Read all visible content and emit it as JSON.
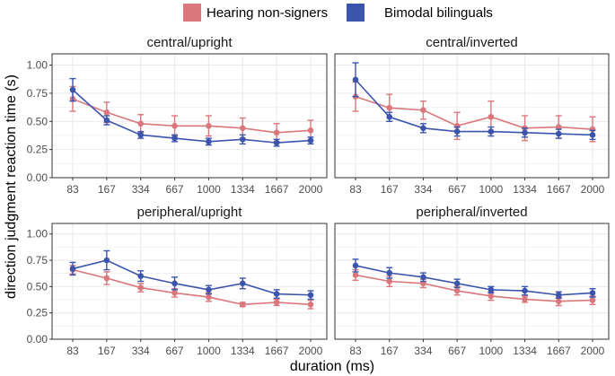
{
  "colors": {
    "hearing": "#d9777d",
    "bimodal": "#3b55ad",
    "grid": "#ebebeb",
    "frame": "#333333"
  },
  "chart_data": {
    "type": "line",
    "xlabel": "duration (ms)",
    "ylabel": "direction judgment reaction time (s)",
    "categories": [
      "83",
      "167",
      "334",
      "667",
      "1000",
      "1334",
      "1667",
      "2000"
    ],
    "ylim": [
      0,
      1.1
    ],
    "yticks": [
      "0.00",
      "0.25",
      "0.50",
      "0.75",
      "1.00"
    ],
    "legend": [
      "Hearing non-signers",
      "Bimodal bilinguals"
    ],
    "legend_position": "top",
    "panels": [
      {
        "title": "central/upright",
        "series": [
          {
            "name": "Hearing non-signers",
            "values": [
              0.7,
              0.58,
              0.48,
              0.46,
              0.46,
              0.44,
              0.4,
              0.42
            ],
            "err": [
              0.11,
              0.09,
              0.08,
              0.09,
              0.09,
              0.09,
              0.08,
              0.09
            ]
          },
          {
            "name": "Bimodal bilinguals",
            "values": [
              0.78,
              0.51,
              0.38,
              0.35,
              0.32,
              0.34,
              0.31,
              0.33
            ],
            "err": [
              0.1,
              0.04,
              0.03,
              0.03,
              0.03,
              0.04,
              0.03,
              0.03
            ]
          }
        ]
      },
      {
        "title": "central/inverted",
        "series": [
          {
            "name": "Hearing non-signers",
            "values": [
              0.72,
              0.62,
              0.6,
              0.46,
              0.54,
              0.44,
              0.45,
              0.43
            ],
            "err": [
              0.13,
              0.12,
              0.08,
              0.12,
              0.14,
              0.11,
              0.1,
              0.11
            ]
          },
          {
            "name": "Bimodal bilinguals",
            "values": [
              0.87,
              0.54,
              0.44,
              0.41,
              0.41,
              0.4,
              0.39,
              0.38
            ],
            "err": [
              0.15,
              0.04,
              0.04,
              0.04,
              0.04,
              0.04,
              0.04,
              0.04
            ]
          }
        ]
      },
      {
        "title": "peripheral/upright",
        "series": [
          {
            "name": "Hearing non-signers",
            "values": [
              0.66,
              0.58,
              0.49,
              0.44,
              0.4,
              0.33,
              0.35,
              0.33
            ],
            "err": [
              0.04,
              0.06,
              0.04,
              0.04,
              0.04,
              0.02,
              0.03,
              0.04
            ]
          },
          {
            "name": "Bimodal bilinguals",
            "values": [
              0.67,
              0.75,
              0.6,
              0.53,
              0.47,
              0.53,
              0.43,
              0.42
            ],
            "err": [
              0.06,
              0.09,
              0.05,
              0.06,
              0.04,
              0.05,
              0.04,
              0.04
            ]
          }
        ]
      },
      {
        "title": "peripheral/inverted",
        "series": [
          {
            "name": "Hearing non-signers",
            "values": [
              0.61,
              0.55,
              0.53,
              0.46,
              0.41,
              0.38,
              0.36,
              0.37
            ],
            "err": [
              0.05,
              0.05,
              0.04,
              0.04,
              0.04,
              0.03,
              0.04,
              0.04
            ]
          },
          {
            "name": "Bimodal bilinguals",
            "values": [
              0.7,
              0.63,
              0.59,
              0.53,
              0.47,
              0.46,
              0.42,
              0.44
            ],
            "err": [
              0.06,
              0.05,
              0.04,
              0.04,
              0.03,
              0.04,
              0.03,
              0.04
            ]
          }
        ]
      }
    ]
  }
}
